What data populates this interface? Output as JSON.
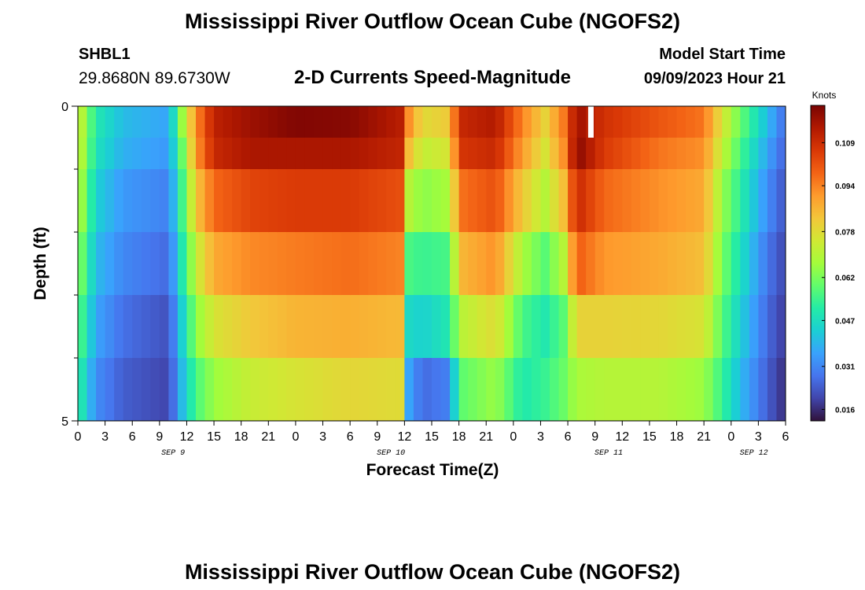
{
  "header": {
    "title": "Mississippi River Outflow Ocean Cube (NGOFS2)",
    "station": "SHBL1",
    "location": "29.8680N  89.6730W",
    "subtitle": "2-D Currents Speed-Magnitude",
    "model_start_label": "Model Start Time",
    "model_start_value": "09/09/2023 Hour 21"
  },
  "footer": {
    "title": "Mississippi River Outflow Ocean Cube (NGOFS2)"
  },
  "chart_data": {
    "type": "heatmap",
    "title": "2-D Currents Speed-Magnitude",
    "xlabel": "Forecast Time(Z)",
    "ylabel": "Depth (ft)",
    "colorbar_label": "Knots",
    "x_tick_labels": [
      "0",
      "3",
      "6",
      "9",
      "12",
      "15",
      "18",
      "21",
      "0",
      "3",
      "6",
      "9",
      "12",
      "15",
      "18",
      "21",
      "0",
      "3",
      "6",
      "9",
      "12",
      "15",
      "18",
      "21",
      "0",
      "3",
      "6"
    ],
    "date_labels": [
      {
        "text": "SEP 9",
        "hour": 10.5
      },
      {
        "text": "SEP 10",
        "hour": 34.5
      },
      {
        "text": "SEP 11",
        "hour": 58.5
      },
      {
        "text": "SEP 12",
        "hour": 74.5
      }
    ],
    "x_range_hours": [
      0,
      78
    ],
    "y_tick_labels": [
      "0",
      "5"
    ],
    "ylim": [
      0,
      5
    ],
    "n_depth_layers": 5,
    "colorbar": {
      "ticks": [
        0.016,
        0.031,
        0.047,
        0.062,
        0.078,
        0.094,
        0.109
      ],
      "range": [
        0.012,
        0.122
      ]
    },
    "colormap": [
      "#30123b",
      "#4145ab",
      "#4675ed",
      "#39a2fc",
      "#1bcfd4",
      "#24eca6",
      "#61fc6c",
      "#a4fc3b",
      "#d1e834",
      "#f3c63a",
      "#fe9b2d",
      "#f36315",
      "#d93806",
      "#b11901",
      "#7a0403"
    ],
    "value_keyframes": [
      {
        "hour": 0,
        "values": [
          0.076,
          0.075,
          0.072,
          0.066,
          0.06,
          0.054
        ]
      },
      {
        "hour": 2,
        "values": [
          0.05,
          0.048,
          0.044,
          0.04,
          0.036,
          0.032
        ]
      },
      {
        "hour": 5,
        "values": [
          0.04,
          0.038,
          0.034,
          0.031,
          0.027,
          0.024
        ]
      },
      {
        "hour": 10,
        "values": [
          0.036,
          0.034,
          0.03,
          0.026,
          0.022,
          0.02
        ]
      },
      {
        "hour": 11.5,
        "values": [
          0.066,
          0.06,
          0.055,
          0.05,
          0.044,
          0.04
        ]
      },
      {
        "hour": 13,
        "values": [
          0.092,
          0.09,
          0.082,
          0.072,
          0.064,
          0.056
        ]
      },
      {
        "hour": 15,
        "values": [
          0.112,
          0.11,
          0.098,
          0.088,
          0.076,
          0.066
        ]
      },
      {
        "hour": 19,
        "values": [
          0.117,
          0.115,
          0.104,
          0.093,
          0.082,
          0.073
        ]
      },
      {
        "hour": 24,
        "values": [
          0.121,
          0.115,
          0.106,
          0.095,
          0.086,
          0.076
        ]
      },
      {
        "hour": 30,
        "values": [
          0.12,
          0.115,
          0.106,
          0.097,
          0.087,
          0.079
        ]
      },
      {
        "hour": 35.5,
        "values": [
          0.113,
          0.111,
          0.102,
          0.094,
          0.085,
          0.078
        ]
      },
      {
        "hour": 36.5,
        "values": [
          0.092,
          0.084,
          0.07,
          0.056,
          0.046,
          0.036
        ]
      },
      {
        "hour": 38,
        "values": [
          0.078,
          0.072,
          0.064,
          0.054,
          0.044,
          0.026
        ]
      },
      {
        "hour": 41,
        "values": [
          0.082,
          0.076,
          0.068,
          0.056,
          0.05,
          0.03
        ]
      },
      {
        "hour": 42,
        "values": [
          0.11,
          0.107,
          0.096,
          0.085,
          0.07,
          0.058
        ]
      },
      {
        "hour": 46,
        "values": [
          0.114,
          0.11,
          0.102,
          0.092,
          0.078,
          0.066
        ]
      },
      {
        "hour": 49,
        "values": [
          0.094,
          0.09,
          0.082,
          0.068,
          0.056,
          0.05
        ]
      },
      {
        "hour": 51.5,
        "values": [
          0.08,
          0.076,
          0.07,
          0.058,
          0.05,
          0.054
        ]
      },
      {
        "hour": 53.5,
        "values": [
          0.095,
          0.092,
          0.084,
          0.07,
          0.058,
          0.06
        ]
      },
      {
        "hour": 55,
        "values": [
          0.117,
          0.12,
          0.11,
          0.1,
          0.08,
          0.068
        ]
      },
      {
        "hour": 58,
        "values": [
          0.108,
          0.106,
          0.098,
          0.091,
          0.08,
          0.07
        ]
      },
      {
        "hour": 64,
        "values": [
          0.101,
          0.096,
          0.092,
          0.088,
          0.079,
          0.07
        ]
      },
      {
        "hour": 69,
        "values": [
          0.096,
          0.092,
          0.088,
          0.084,
          0.076,
          0.066
        ]
      },
      {
        "hour": 71,
        "values": [
          0.076,
          0.072,
          0.066,
          0.062,
          0.058,
          0.054
        ]
      },
      {
        "hour": 73,
        "values": [
          0.06,
          0.056,
          0.052,
          0.048,
          0.044,
          0.04
        ]
      },
      {
        "hour": 76,
        "values": [
          0.04,
          0.036,
          0.032,
          0.028,
          0.026,
          0.024
        ]
      },
      {
        "hour": 78,
        "values": [
          0.026,
          0.024,
          0.022,
          0.02,
          0.018,
          0.016
        ]
      }
    ],
    "missing_data_hour": 56.5
  }
}
